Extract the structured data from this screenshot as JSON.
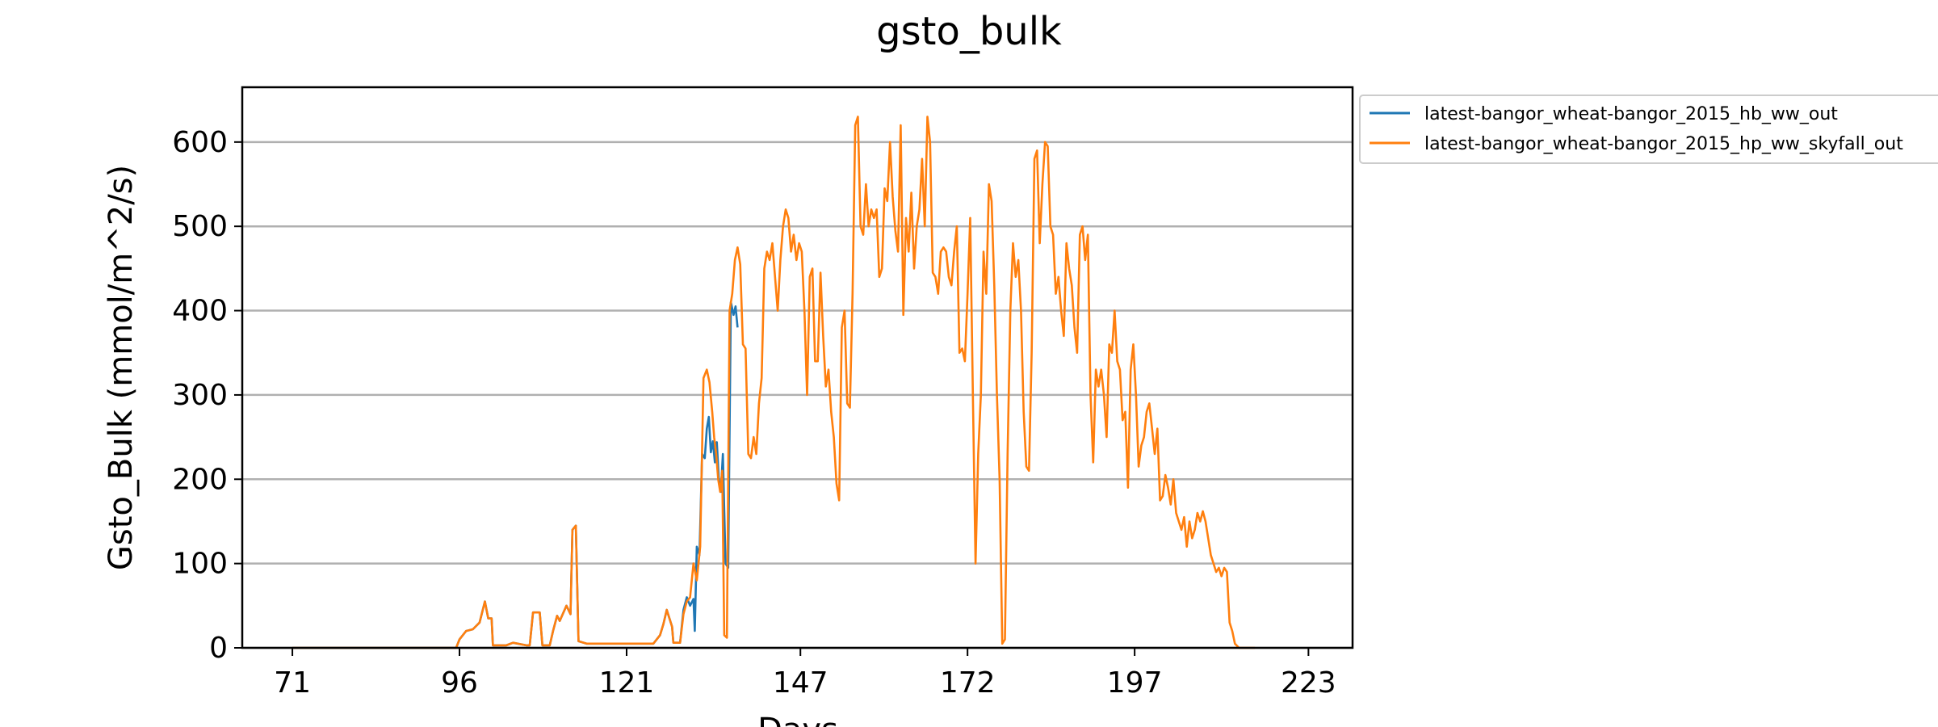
{
  "chart_data": {
    "type": "line",
    "title": "gsto_bulk",
    "xlabel": "Days",
    "ylabel": "Gsto_Bulk (mmol/m^2/s)",
    "xlim": [
      63.5,
      229.6
    ],
    "ylim": [
      0,
      665
    ],
    "x_ticks": [
      71,
      96,
      121,
      147,
      172,
      197,
      223
    ],
    "y_ticks": [
      0,
      100,
      200,
      300,
      400,
      500,
      600
    ],
    "grid": "horizontal",
    "legend_position": "outside-top-right",
    "colors": {
      "hb": "#1f77b4",
      "hp": "#ff7f0e"
    },
    "series": [
      {
        "name": "latest-bangor_wheat-bangor_2015_hb_ww_out",
        "color": "#1f77b4",
        "points": [
          [
            71,
            0
          ],
          [
            95.5,
            0
          ],
          [
            96,
            10
          ],
          [
            97,
            20
          ],
          [
            98,
            22
          ],
          [
            99,
            30
          ],
          [
            99.8,
            55
          ],
          [
            100.3,
            35
          ],
          [
            100.8,
            35
          ],
          [
            101,
            3
          ],
          [
            103,
            3
          ],
          [
            104,
            6
          ],
          [
            106,
            3
          ],
          [
            106.5,
            3
          ],
          [
            107,
            42
          ],
          [
            108,
            42
          ],
          [
            108.4,
            3
          ],
          [
            109.5,
            3
          ],
          [
            110,
            20
          ],
          [
            110.6,
            38
          ],
          [
            111,
            32
          ],
          [
            112,
            50
          ],
          [
            112.6,
            40
          ],
          [
            112.9,
            140
          ],
          [
            113.4,
            145
          ],
          [
            113.8,
            8
          ],
          [
            115,
            5
          ],
          [
            120,
            5
          ],
          [
            125,
            5
          ],
          [
            126,
            15
          ],
          [
            126.5,
            28
          ],
          [
            127,
            45
          ],
          [
            127.8,
            25
          ],
          [
            128,
            6
          ],
          [
            129,
            6
          ],
          [
            129.5,
            45
          ],
          [
            130,
            60
          ],
          [
            130.5,
            50
          ],
          [
            131,
            58
          ],
          [
            131.2,
            20
          ],
          [
            131.5,
            120
          ],
          [
            131.9,
            110
          ],
          [
            132.3,
            230
          ],
          [
            132.7,
            225
          ],
          [
            133,
            260
          ],
          [
            133.3,
            274
          ],
          [
            133.6,
            232
          ],
          [
            133.9,
            245
          ],
          [
            134.2,
            220
          ],
          [
            134.5,
            244
          ],
          [
            134.8,
            200
          ],
          [
            135.1,
            185
          ],
          [
            135.4,
            230
          ],
          [
            135.8,
            100
          ],
          [
            136.2,
            95
          ],
          [
            136.6,
            410
          ],
          [
            137,
            395
          ],
          [
            137.3,
            405
          ],
          [
            137.6,
            380
          ]
        ]
      },
      {
        "name": "latest-bangor_wheat-bangor_2015_hp_ww_skyfall_out",
        "color": "#ff7f0e",
        "points": [
          [
            71,
            0
          ],
          [
            95.5,
            0
          ],
          [
            96,
            10
          ],
          [
            97,
            20
          ],
          [
            98,
            22
          ],
          [
            99,
            30
          ],
          [
            99.8,
            55
          ],
          [
            100.3,
            35
          ],
          [
            100.8,
            35
          ],
          [
            101,
            3
          ],
          [
            103,
            3
          ],
          [
            104,
            6
          ],
          [
            106,
            3
          ],
          [
            106.5,
            3
          ],
          [
            107,
            42
          ],
          [
            108,
            42
          ],
          [
            108.4,
            3
          ],
          [
            109.5,
            3
          ],
          [
            110,
            20
          ],
          [
            110.6,
            38
          ],
          [
            111,
            32
          ],
          [
            112,
            50
          ],
          [
            112.6,
            40
          ],
          [
            112.9,
            140
          ],
          [
            113.4,
            145
          ],
          [
            113.8,
            8
          ],
          [
            115,
            5
          ],
          [
            120,
            5
          ],
          [
            125,
            5
          ],
          [
            126,
            15
          ],
          [
            126.5,
            28
          ],
          [
            127,
            45
          ],
          [
            127.8,
            25
          ],
          [
            128,
            6
          ],
          [
            129,
            6
          ],
          [
            129.5,
            40
          ],
          [
            130,
            55
          ],
          [
            130.5,
            60
          ],
          [
            131,
            100
          ],
          [
            131.5,
            80
          ],
          [
            132,
            120
          ],
          [
            132.5,
            320
          ],
          [
            133,
            330
          ],
          [
            133.4,
            315
          ],
          [
            133.8,
            280
          ],
          [
            134.1,
            250
          ],
          [
            134.4,
            230
          ],
          [
            134.7,
            200
          ],
          [
            135,
            185
          ],
          [
            135.3,
            210
          ],
          [
            135.6,
            15
          ],
          [
            136,
            12
          ],
          [
            136.4,
            400
          ],
          [
            136.8,
            420
          ],
          [
            137.2,
            460
          ],
          [
            137.6,
            475
          ],
          [
            138,
            455
          ],
          [
            138.4,
            360
          ],
          [
            138.8,
            355
          ],
          [
            139.2,
            230
          ],
          [
            139.6,
            225
          ],
          [
            140,
            250
          ],
          [
            140.4,
            230
          ],
          [
            140.8,
            290
          ],
          [
            141.2,
            320
          ],
          [
            141.6,
            450
          ],
          [
            142,
            470
          ],
          [
            142.4,
            460
          ],
          [
            142.8,
            480
          ],
          [
            143.2,
            440
          ],
          [
            143.6,
            400
          ],
          [
            144,
            460
          ],
          [
            144.4,
            500
          ],
          [
            144.8,
            520
          ],
          [
            145.2,
            510
          ],
          [
            145.6,
            470
          ],
          [
            146,
            490
          ],
          [
            146.4,
            460
          ],
          [
            146.8,
            480
          ],
          [
            147.2,
            470
          ],
          [
            147.6,
            400
          ],
          [
            148,
            300
          ],
          [
            148.4,
            440
          ],
          [
            148.8,
            450
          ],
          [
            149.2,
            340
          ],
          [
            149.6,
            340
          ],
          [
            150,
            445
          ],
          [
            150.4,
            370
          ],
          [
            150.8,
            310
          ],
          [
            151.2,
            330
          ],
          [
            151.6,
            280
          ],
          [
            152,
            250
          ],
          [
            152.4,
            195
          ],
          [
            152.8,
            175
          ],
          [
            153.2,
            380
          ],
          [
            153.6,
            400
          ],
          [
            154,
            290
          ],
          [
            154.4,
            285
          ],
          [
            154.8,
            420
          ],
          [
            155.2,
            620
          ],
          [
            155.6,
            630
          ],
          [
            156,
            500
          ],
          [
            156.4,
            490
          ],
          [
            156.8,
            550
          ],
          [
            157.2,
            500
          ],
          [
            157.6,
            520
          ],
          [
            158,
            510
          ],
          [
            158.4,
            520
          ],
          [
            158.8,
            440
          ],
          [
            159.2,
            450
          ],
          [
            159.6,
            545
          ],
          [
            160,
            530
          ],
          [
            160.4,
            600
          ],
          [
            160.8,
            535
          ],
          [
            161.2,
            495
          ],
          [
            161.6,
            470
          ],
          [
            162,
            620
          ],
          [
            162.4,
            395
          ],
          [
            162.8,
            510
          ],
          [
            163.2,
            470
          ],
          [
            163.6,
            540
          ],
          [
            164,
            450
          ],
          [
            164.4,
            500
          ],
          [
            164.8,
            520
          ],
          [
            165.2,
            580
          ],
          [
            165.6,
            500
          ],
          [
            166,
            630
          ],
          [
            166.4,
            600
          ],
          [
            166.8,
            445
          ],
          [
            167.2,
            440
          ],
          [
            167.6,
            420
          ],
          [
            168,
            470
          ],
          [
            168.4,
            475
          ],
          [
            168.8,
            470
          ],
          [
            169.2,
            440
          ],
          [
            169.6,
            430
          ],
          [
            170,
            470
          ],
          [
            170.4,
            500
          ],
          [
            170.8,
            350
          ],
          [
            171.2,
            355
          ],
          [
            171.6,
            340
          ],
          [
            172,
            420
          ],
          [
            172.4,
            510
          ],
          [
            172.8,
            300
          ],
          [
            173.2,
            100
          ],
          [
            173.6,
            230
          ],
          [
            174,
            300
          ],
          [
            174.4,
            470
          ],
          [
            174.8,
            420
          ],
          [
            175.2,
            550
          ],
          [
            175.6,
            530
          ],
          [
            176,
            430
          ],
          [
            176.4,
            300
          ],
          [
            176.8,
            200
          ],
          [
            177.2,
            5
          ],
          [
            177.6,
            10
          ],
          [
            178,
            230
          ],
          [
            178.4,
            400
          ],
          [
            178.8,
            480
          ],
          [
            179.2,
            440
          ],
          [
            179.6,
            460
          ],
          [
            180,
            400
          ],
          [
            180.4,
            280
          ],
          [
            180.8,
            215
          ],
          [
            181.2,
            210
          ],
          [
            181.6,
            350
          ],
          [
            182,
            580
          ],
          [
            182.4,
            590
          ],
          [
            182.8,
            480
          ],
          [
            183.2,
            550
          ],
          [
            183.6,
            600
          ],
          [
            184,
            595
          ],
          [
            184.4,
            500
          ],
          [
            184.8,
            490
          ],
          [
            185.2,
            420
          ],
          [
            185.6,
            440
          ],
          [
            186,
            400
          ],
          [
            186.4,
            370
          ],
          [
            186.8,
            480
          ],
          [
            187.2,
            450
          ],
          [
            187.6,
            430
          ],
          [
            188,
            380
          ],
          [
            188.4,
            350
          ],
          [
            188.8,
            490
          ],
          [
            189.2,
            500
          ],
          [
            189.6,
            460
          ],
          [
            190,
            490
          ],
          [
            190.4,
            300
          ],
          [
            190.8,
            220
          ],
          [
            191.2,
            330
          ],
          [
            191.6,
            310
          ],
          [
            192,
            330
          ],
          [
            192.4,
            300
          ],
          [
            192.8,
            250
          ],
          [
            193.2,
            360
          ],
          [
            193.6,
            350
          ],
          [
            194,
            400
          ],
          [
            194.4,
            340
          ],
          [
            194.8,
            330
          ],
          [
            195.2,
            270
          ],
          [
            195.6,
            280
          ],
          [
            196,
            190
          ],
          [
            196.4,
            330
          ],
          [
            196.8,
            360
          ],
          [
            197.2,
            300
          ],
          [
            197.6,
            215
          ],
          [
            198,
            240
          ],
          [
            198.4,
            250
          ],
          [
            198.8,
            280
          ],
          [
            199.2,
            290
          ],
          [
            199.6,
            260
          ],
          [
            200,
            230
          ],
          [
            200.4,
            260
          ],
          [
            200.8,
            175
          ],
          [
            201.2,
            180
          ],
          [
            201.6,
            205
          ],
          [
            202,
            190
          ],
          [
            202.4,
            170
          ],
          [
            202.8,
            200
          ],
          [
            203.2,
            160
          ],
          [
            203.6,
            150
          ],
          [
            204,
            140
          ],
          [
            204.4,
            155
          ],
          [
            204.8,
            120
          ],
          [
            205.2,
            150
          ],
          [
            205.6,
            130
          ],
          [
            206,
            140
          ],
          [
            206.4,
            160
          ],
          [
            206.8,
            150
          ],
          [
            207.2,
            162
          ],
          [
            207.6,
            150
          ],
          [
            208,
            130
          ],
          [
            208.4,
            110
          ],
          [
            208.8,
            100
          ],
          [
            209.2,
            90
          ],
          [
            209.6,
            95
          ],
          [
            210,
            85
          ],
          [
            210.4,
            95
          ],
          [
            210.8,
            90
          ],
          [
            211.2,
            30
          ],
          [
            211.6,
            20
          ],
          [
            212,
            5
          ],
          [
            212.6,
            0
          ],
          [
            215,
            0
          ]
        ]
      }
    ]
  }
}
